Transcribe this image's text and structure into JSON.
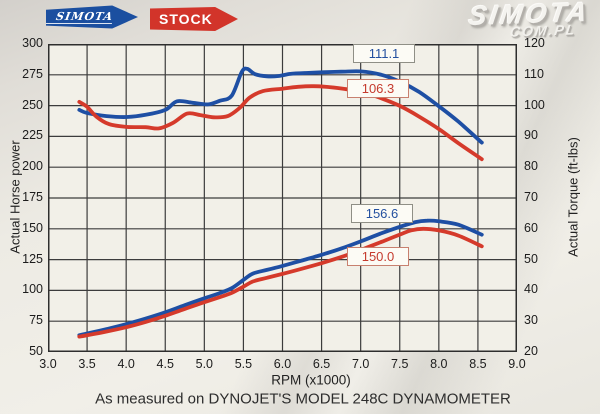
{
  "legend": {
    "simota_label": "SIMOTA",
    "stock_label": "STOCK"
  },
  "watermark": {
    "line1": "SIMOTA",
    "line2": "COM.PL"
  },
  "caption": {
    "text": "As measured on DYNOJET'S MODEL 248C DYNAMOMETER"
  },
  "colors": {
    "simota_curve": "#1e4fa4",
    "stock_curve": "#d53a2b",
    "grid": "#3c3c3c",
    "plot_border": "#2e2e2e",
    "paper": "#f2f0e8"
  },
  "chart_data": {
    "type": "line",
    "title": "",
    "xlabel": "RPM (x1000)",
    "ylabel_left": "Actual Horse power",
    "ylabel_right": "Actual Torque (ft-lbs)",
    "xlim": [
      3.0,
      9.0
    ],
    "ylim_left": [
      50,
      300
    ],
    "ylim_right": [
      20,
      120
    ],
    "grid": "on",
    "x_ticks": [
      "3.0",
      "3.5",
      "4.0",
      "4.5",
      "5.0",
      "5.5",
      "6.0",
      "6.5",
      "7.0",
      "7.5",
      "8.0",
      "8.5",
      "9.0"
    ],
    "left_ticks": [
      "300",
      "275",
      "250",
      "225",
      "200",
      "175",
      "150",
      "125",
      "100",
      "75",
      "50"
    ],
    "right_ticks": [
      "120",
      "110",
      "100",
      "90",
      "80",
      "70",
      "60",
      "50",
      "40",
      "30",
      "20"
    ],
    "annotations": [
      {
        "text": "111.1",
        "meaning": "SIMOTA peak torque (ft-lbs)"
      },
      {
        "text": "106.3",
        "meaning": "STOCK peak torque (ft-lbs)"
      },
      {
        "text": "156.6",
        "meaning": "SIMOTA peak horsepower"
      },
      {
        "text": "150.0",
        "meaning": "STOCK peak horsepower"
      }
    ],
    "series": [
      {
        "name": "SIMOTA torque",
        "axis": "right",
        "color": "#1e4fa4",
        "points": [
          [
            3.4,
            98.6
          ],
          [
            3.5,
            97.6
          ],
          [
            3.75,
            96.6
          ],
          [
            4.0,
            96.3
          ],
          [
            4.25,
            97.0
          ],
          [
            4.5,
            98.6
          ],
          [
            4.65,
            101.4
          ],
          [
            4.85,
            100.9
          ],
          [
            5.05,
            100.4
          ],
          [
            5.2,
            101.6
          ],
          [
            5.35,
            103.2
          ],
          [
            5.48,
            111.0
          ],
          [
            5.55,
            111.9
          ],
          [
            5.65,
            110.2
          ],
          [
            5.8,
            109.5
          ],
          [
            5.95,
            109.6
          ],
          [
            6.1,
            110.3
          ],
          [
            6.3,
            110.6
          ],
          [
            6.5,
            110.8
          ],
          [
            6.75,
            111.0
          ],
          [
            7.0,
            111.1
          ],
          [
            7.25,
            110.1
          ],
          [
            7.5,
            107.8
          ],
          [
            7.75,
            104.4
          ],
          [
            8.0,
            99.8
          ],
          [
            8.25,
            94.8
          ],
          [
            8.55,
            88.0
          ]
        ]
      },
      {
        "name": "STOCK torque",
        "axis": "right",
        "color": "#d53a2b",
        "points": [
          [
            3.4,
            101.2
          ],
          [
            3.5,
            99.6
          ],
          [
            3.62,
            96.4
          ],
          [
            3.78,
            94.0
          ],
          [
            4.0,
            93.1
          ],
          [
            4.25,
            93.0
          ],
          [
            4.42,
            92.6
          ],
          [
            4.6,
            94.4
          ],
          [
            4.78,
            97.4
          ],
          [
            4.95,
            96.9
          ],
          [
            5.12,
            96.2
          ],
          [
            5.3,
            96.6
          ],
          [
            5.45,
            99.2
          ],
          [
            5.58,
            102.6
          ],
          [
            5.75,
            104.7
          ],
          [
            6.0,
            105.5
          ],
          [
            6.2,
            106.1
          ],
          [
            6.4,
            106.3
          ],
          [
            6.6,
            106.0
          ],
          [
            6.8,
            105.4
          ],
          [
            7.0,
            104.5
          ],
          [
            7.25,
            102.5
          ],
          [
            7.5,
            99.9
          ],
          [
            7.75,
            96.4
          ],
          [
            8.0,
            92.4
          ],
          [
            8.25,
            87.8
          ],
          [
            8.55,
            82.6
          ]
        ]
      },
      {
        "name": "SIMOTA horse power",
        "axis": "left",
        "color": "#1e4fa4",
        "points": [
          [
            3.4,
            63.6
          ],
          [
            3.5,
            65.0
          ],
          [
            3.75,
            68.6
          ],
          [
            4.0,
            72.6
          ],
          [
            4.25,
            77.1
          ],
          [
            4.5,
            82.2
          ],
          [
            4.75,
            88.0
          ],
          [
            5.0,
            93.6
          ],
          [
            5.2,
            97.9
          ],
          [
            5.35,
            101.8
          ],
          [
            5.5,
            108.5
          ],
          [
            5.62,
            113.6
          ],
          [
            5.8,
            116.6
          ],
          [
            6.0,
            119.9
          ],
          [
            6.25,
            124.3
          ],
          [
            6.5,
            128.9
          ],
          [
            6.75,
            133.9
          ],
          [
            7.0,
            139.8
          ],
          [
            7.25,
            146.0
          ],
          [
            7.5,
            151.6
          ],
          [
            7.7,
            155.4
          ],
          [
            7.85,
            156.6
          ],
          [
            8.0,
            156.1
          ],
          [
            8.25,
            153.3
          ],
          [
            8.55,
            145.2
          ]
        ]
      },
      {
        "name": "STOCK horse power",
        "axis": "left",
        "color": "#d53a2b",
        "points": [
          [
            3.4,
            62.5
          ],
          [
            3.5,
            63.6
          ],
          [
            3.75,
            66.6
          ],
          [
            4.0,
            70.1
          ],
          [
            4.25,
            74.4
          ],
          [
            4.5,
            79.4
          ],
          [
            4.75,
            85.0
          ],
          [
            5.0,
            90.4
          ],
          [
            5.2,
            94.6
          ],
          [
            5.35,
            98.0
          ],
          [
            5.5,
            103.0
          ],
          [
            5.62,
            107.2
          ],
          [
            5.8,
            110.2
          ],
          [
            6.0,
            113.4
          ],
          [
            6.25,
            117.6
          ],
          [
            6.5,
            122.1
          ],
          [
            6.75,
            127.0
          ],
          [
            7.0,
            132.8
          ],
          [
            7.25,
            139.0
          ],
          [
            7.5,
            145.3
          ],
          [
            7.65,
            148.8
          ],
          [
            7.8,
            150.0
          ],
          [
            8.0,
            148.7
          ],
          [
            8.25,
            144.5
          ],
          [
            8.55,
            135.8
          ]
        ]
      }
    ]
  }
}
